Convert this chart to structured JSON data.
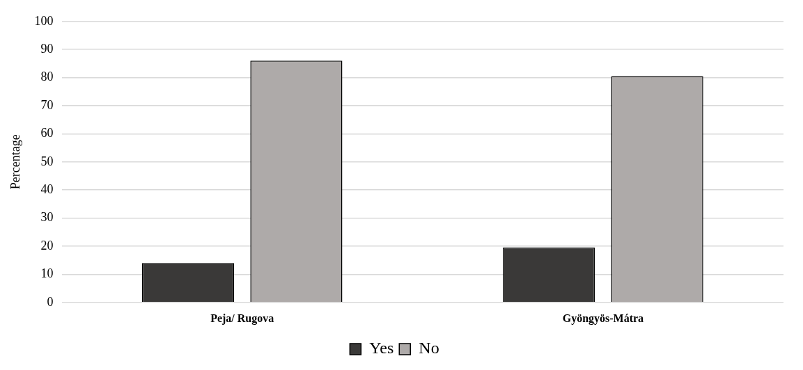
{
  "chart_data": {
    "type": "bar",
    "ylabel": "Percentage",
    "categories": [
      "Peja/ Rugova",
      "Gyöngyös-Mátra"
    ],
    "series": [
      {
        "name": "Yes",
        "color": "#3a3938",
        "values": [
          14,
          19.5
        ]
      },
      {
        "name": "No",
        "color": "#aeaaa9",
        "values": [
          86,
          80.5
        ]
      }
    ],
    "ylim": [
      0,
      100
    ],
    "yticks": [
      0,
      10,
      20,
      30,
      40,
      50,
      60,
      70,
      80,
      90,
      100
    ],
    "grid": "y",
    "legend": "bottom"
  }
}
